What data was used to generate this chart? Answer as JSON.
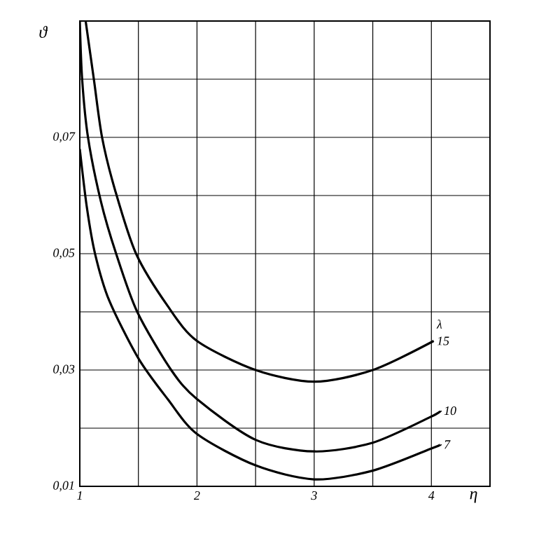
{
  "chart_data": {
    "type": "line",
    "xlabel": "η",
    "ylabel": "ϑ",
    "legend_title": "λ",
    "xlim": [
      1,
      4.5
    ],
    "ylim": [
      0.01,
      0.09
    ],
    "xticks": [
      1,
      {
        "value": 1.5,
        "label": null
      },
      2,
      {
        "value": 2.5,
        "label": null
      },
      3,
      {
        "value": 3.5,
        "label": null
      },
      4
    ],
    "yticks": [
      {
        "value": 0.01,
        "label": "0,01"
      },
      {
        "value": 0.02,
        "label": null
      },
      {
        "value": 0.03,
        "label": "0,03"
      },
      {
        "value": 0.04,
        "label": null
      },
      {
        "value": 0.05,
        "label": "0,05"
      },
      {
        "value": 0.06,
        "label": null
      },
      {
        "value": 0.07,
        "label": "0,07"
      },
      {
        "value": 0.08,
        "label": null
      }
    ],
    "grid": true,
    "marker": "none",
    "line_style": "solid",
    "series": [
      {
        "name": "15",
        "color": "#000000",
        "x": [
          1.05,
          1.12,
          1.19,
          1.3,
          1.48,
          1.75,
          2,
          2.5,
          3,
          3.5,
          4.02
        ],
        "values": [
          0.09,
          0.08,
          0.07,
          0.061,
          0.05,
          0.041,
          0.035,
          0.03,
          0.028,
          0.03,
          0.035
        ]
      },
      {
        "name": "10",
        "color": "#000000",
        "x": [
          1.0,
          1.02,
          1.07,
          1.18,
          1.31,
          1.49,
          1.78,
          2,
          2.5,
          3,
          3.5,
          4,
          4.08
        ],
        "values": [
          0.09,
          0.08,
          0.07,
          0.059,
          0.05,
          0.04,
          0.03,
          0.025,
          0.018,
          0.016,
          0.0175,
          0.022,
          0.023
        ]
      },
      {
        "name": "7",
        "color": "#000000",
        "x": [
          1.0,
          1.06,
          1.13,
          1.25,
          1.5,
          1.75,
          2,
          2.5,
          3,
          3.5,
          4,
          4.08
        ],
        "values": [
          0.068,
          0.058,
          0.05,
          0.042,
          0.032,
          0.025,
          0.019,
          0.0136,
          0.0112,
          0.0127,
          0.0165,
          0.0172
        ]
      }
    ]
  }
}
